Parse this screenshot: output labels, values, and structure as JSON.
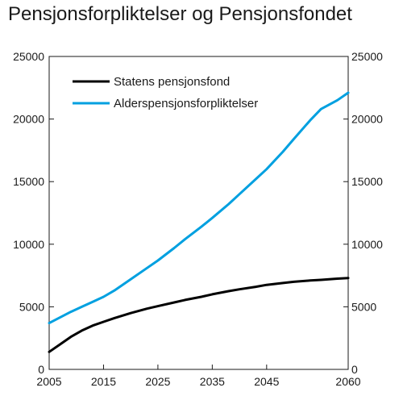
{
  "chart_data": {
    "type": "line",
    "title": "Pensjonsforpliktelser og Pensjonsfondet",
    "xlabel": "",
    "ylabel": "",
    "xlim": [
      2005,
      2060
    ],
    "ylim": [
      0,
      25000
    ],
    "x_ticks": [
      2005,
      2015,
      2025,
      2035,
      2045,
      2060
    ],
    "y_ticks": [
      0,
      5000,
      10000,
      15000,
      20000,
      25000
    ],
    "y_tick_labels": [
      "0",
      "5000",
      "10000",
      "15000",
      "20000",
      "25000"
    ],
    "x_tick_labels": [
      "2005",
      "2015",
      "2025",
      "2035",
      "2045",
      "2060"
    ],
    "grid": false,
    "legend_position": "top-left",
    "x": [
      2005,
      2007,
      2009,
      2011,
      2013,
      2015,
      2017,
      2020,
      2023,
      2025,
      2028,
      2030,
      2033,
      2035,
      2038,
      2040,
      2043,
      2045,
      2048,
      2050,
      2053,
      2055,
      2058,
      2060
    ],
    "series": [
      {
        "name": "Statens pensjonsfond",
        "color": "#000000",
        "values": [
          1400,
          2000,
          2600,
          3100,
          3500,
          3800,
          4100,
          4500,
          4850,
          5050,
          5350,
          5550,
          5800,
          6000,
          6250,
          6400,
          6600,
          6750,
          6900,
          7000,
          7100,
          7150,
          7250,
          7300
        ]
      },
      {
        "name": "Alderspensjonsforpliktelser",
        "color": "#00a0e0",
        "values": [
          3700,
          4150,
          4600,
          5000,
          5400,
          5800,
          6300,
          7200,
          8100,
          8700,
          9700,
          10400,
          11400,
          12100,
          13200,
          14000,
          15200,
          16000,
          17400,
          18400,
          19900,
          20800,
          21500,
          22100
        ]
      }
    ]
  }
}
